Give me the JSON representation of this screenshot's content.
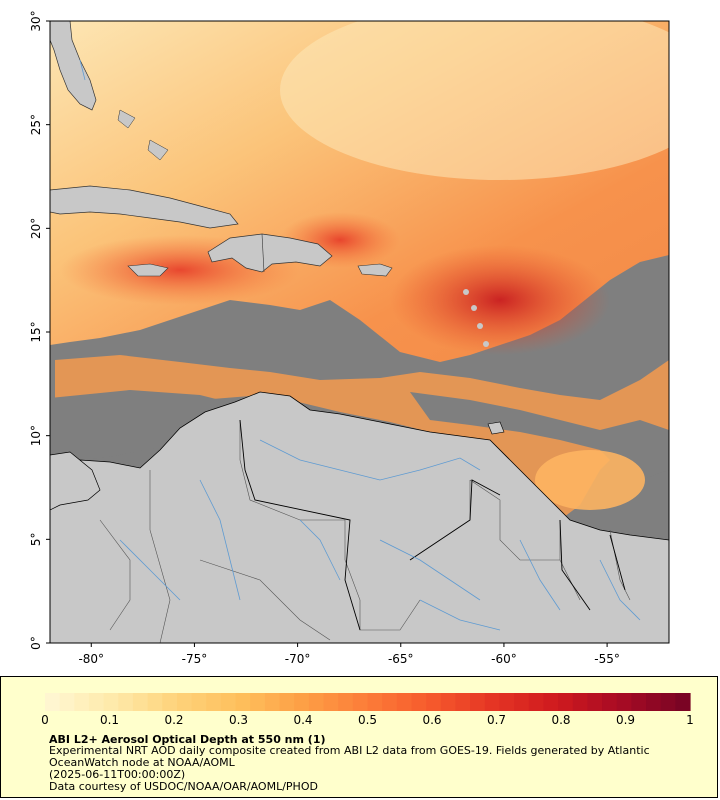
{
  "map": {
    "lon_range": [
      -82,
      -52
    ],
    "lat_range": [
      0,
      30
    ],
    "x_ticks": [
      {
        "value": -80,
        "label": "-80°"
      },
      {
        "value": -75,
        "label": "-75°"
      },
      {
        "value": -70,
        "label": "-70°"
      },
      {
        "value": -65,
        "label": "-65°"
      },
      {
        "value": -60,
        "label": "-60°"
      },
      {
        "value": -55,
        "label": "-55°"
      }
    ],
    "y_ticks": [
      {
        "value": 0,
        "label": "0°"
      },
      {
        "value": 5,
        "label": "5°"
      },
      {
        "value": 10,
        "label": "10°"
      },
      {
        "value": 15,
        "label": "15°"
      },
      {
        "value": 20,
        "label": "20°"
      },
      {
        "value": 25,
        "label": "25°"
      },
      {
        "value": 30,
        "label": "30°"
      }
    ],
    "colors": {
      "land": "#c8c8c8",
      "no_data": "#7f7f7f",
      "borders": "#555555",
      "rivers": "#5f9bd2",
      "coast": "#000000"
    }
  },
  "colorbar": {
    "min": 0,
    "max": 1,
    "ticks": [
      "0",
      "0.1",
      "0.2",
      "0.3",
      "0.4",
      "0.5",
      "0.6",
      "0.7",
      "0.8",
      "0.9",
      "1"
    ],
    "stops": [
      "#fff6d0",
      "#fee9a8",
      "#fed27a",
      "#febf5c",
      "#fd9e45",
      "#fc7c38",
      "#f65a2c",
      "#e53424",
      "#cf1a1e",
      "#a80b24",
      "#7a0424"
    ]
  },
  "caption": {
    "title": "ABI L2+ Aerosol Optical Depth at 550 nm (1)",
    "description_line1": "Experimental NRT AOD daily composite created from ABI L2 data from GOES-19. Fields generated by Atlantic",
    "description_line2": "OceanWatch node at NOAA/AOML",
    "timestamp": "(2025-06-11T00:00:00Z)",
    "credit": "Data courtesy of USDOC/NOAA/OAR/AOML/PHOD"
  }
}
